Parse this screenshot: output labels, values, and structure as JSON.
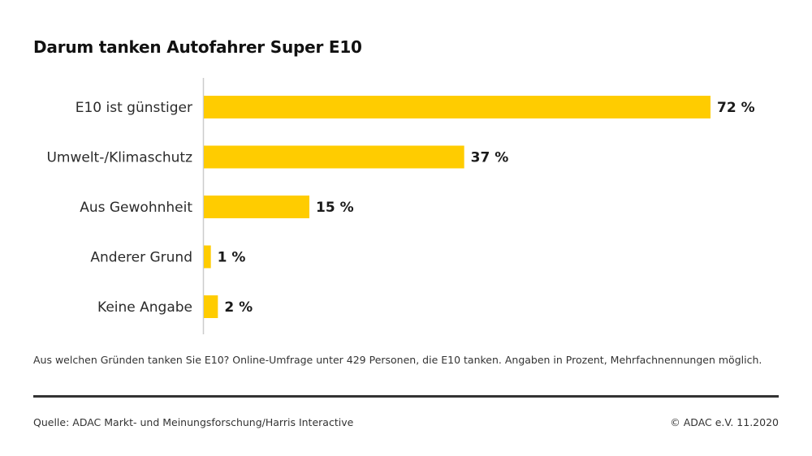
{
  "chart_data": {
    "type": "bar",
    "orientation": "horizontal",
    "title": "Darum tanken Autofahrer Super E10",
    "categories": [
      "E10 ist günstiger",
      "Umwelt-/Klimaschutz",
      "Aus Gewohnheit",
      "Anderer Grund",
      "Keine Angabe"
    ],
    "values": [
      72,
      37,
      15,
      1,
      2
    ],
    "value_labels": [
      "72 %",
      "37 %",
      "15 %",
      "1 %",
      "2 %"
    ],
    "unit": "%",
    "xlim": [
      0,
      72
    ],
    "grid": false,
    "bar_color": "#FFCC00",
    "axis_color": "#cccccc",
    "xlabel": "",
    "ylabel": ""
  },
  "footnote": "Aus welchen Gründen tanken Sie E10? Online-Umfrage unter 429 Personen, die E10 tanken. Angaben in Prozent, Mehrfachnennungen möglich.",
  "source": "Quelle: ADAC Markt- und Meinungsforschung/Harris Interactive",
  "copyright": "© ADAC e.V. 11.2020"
}
